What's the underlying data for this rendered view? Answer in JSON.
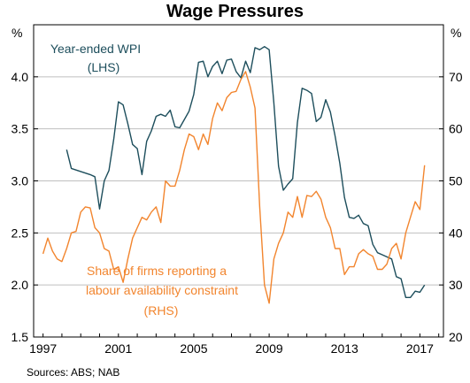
{
  "chart_data": {
    "type": "line",
    "title": "Wage Pressures",
    "source": "Sources:   ABS; NAB",
    "left_unit": "%",
    "right_unit": "%",
    "left_axis": {
      "ylim": [
        1.5,
        4.5
      ],
      "ticks": [
        1.5,
        2.0,
        2.5,
        3.0,
        3.5,
        4.0
      ],
      "tick_labels": [
        "1.5",
        "2.0",
        "2.5",
        "3.0",
        "3.5",
        "4.0"
      ]
    },
    "right_axis": {
      "ylim": [
        20,
        80
      ],
      "ticks": [
        20,
        30,
        40,
        50,
        60,
        70
      ],
      "tick_labels": [
        "20",
        "30",
        "40",
        "50",
        "60",
        "70"
      ]
    },
    "x_axis": {
      "xlim": [
        1996.5,
        2018.25
      ],
      "tick_labels": [
        "1997",
        "2001",
        "2005",
        "2009",
        "2013",
        "2017"
      ],
      "tick_years": [
        1997,
        2001,
        2005,
        2009,
        2013,
        2017
      ]
    },
    "grid": true,
    "series": [
      {
        "name": "Year-ended WPI",
        "axis_label": "(LHS)",
        "axis": "left",
        "color": "#1d4e5c",
        "x": [
          1998.25,
          1998.5,
          1999.0,
          1999.5,
          1999.75,
          2000.0,
          2000.25,
          2000.5,
          2000.75,
          2001.0,
          2001.25,
          2001.5,
          2001.75,
          2002.0,
          2002.25,
          2002.5,
          2002.75,
          2003.0,
          2003.25,
          2003.5,
          2003.75,
          2004.0,
          2004.25,
          2004.5,
          2004.75,
          2005.0,
          2005.25,
          2005.5,
          2005.75,
          2006.0,
          2006.25,
          2006.5,
          2006.75,
          2007.0,
          2007.25,
          2007.5,
          2007.75,
          2008.0,
          2008.25,
          2008.5,
          2008.75,
          2009.0,
          2009.25,
          2009.5,
          2009.75,
          2010.0,
          2010.25,
          2010.5,
          2010.75,
          2011.0,
          2011.25,
          2011.5,
          2011.75,
          2012.0,
          2012.25,
          2012.5,
          2012.75,
          2013.0,
          2013.25,
          2013.5,
          2013.75,
          2014.0,
          2014.25,
          2014.5,
          2014.75,
          2015.0,
          2015.25,
          2015.5,
          2015.75,
          2016.0,
          2016.25,
          2016.5,
          2016.75,
          2017.0,
          2017.25
        ],
        "y": [
          3.3,
          3.12,
          3.09,
          3.06,
          3.04,
          2.73,
          3.0,
          3.1,
          3.4,
          3.76,
          3.73,
          3.55,
          3.35,
          3.31,
          3.06,
          3.38,
          3.48,
          3.62,
          3.64,
          3.62,
          3.68,
          3.52,
          3.51,
          3.59,
          3.67,
          3.83,
          4.14,
          4.15,
          4.0,
          4.1,
          4.15,
          4.03,
          4.16,
          4.17,
          4.05,
          3.99,
          4.15,
          4.04,
          4.28,
          4.26,
          4.29,
          4.26,
          3.75,
          3.14,
          2.91,
          2.97,
          3.02,
          3.56,
          3.89,
          3.87,
          3.84,
          3.57,
          3.61,
          3.78,
          3.66,
          3.43,
          3.17,
          2.84,
          2.65,
          2.64,
          2.67,
          2.59,
          2.57,
          2.39,
          2.31,
          2.29,
          2.27,
          2.25,
          2.08,
          2.06,
          1.88,
          1.88,
          1.94,
          1.93,
          2.0
        ]
      },
      {
        "name": "Share of firms reporting a labour availability constraint",
        "label_lines": [
          "Share of firms reporting a",
          "labour availability constraint"
        ],
        "axis_label": "(RHS)",
        "axis": "right",
        "color": "#f2852e",
        "x": [
          1997.0,
          1997.25,
          1997.5,
          1997.75,
          1998.0,
          1998.25,
          1998.5,
          1998.75,
          1999.0,
          1999.25,
          1999.5,
          1999.75,
          2000.0,
          2000.25,
          2000.5,
          2000.75,
          2001.0,
          2001.25,
          2001.5,
          2001.75,
          2002.0,
          2002.25,
          2002.5,
          2002.75,
          2003.0,
          2003.25,
          2003.5,
          2003.75,
          2004.0,
          2004.25,
          2004.5,
          2004.75,
          2005.0,
          2005.25,
          2005.5,
          2005.75,
          2006.0,
          2006.25,
          2006.5,
          2006.75,
          2007.0,
          2007.25,
          2007.5,
          2007.75,
          2008.0,
          2008.25,
          2008.5,
          2008.75,
          2009.0,
          2009.25,
          2009.5,
          2009.75,
          2010.0,
          2010.25,
          2010.5,
          2010.75,
          2011.0,
          2011.25,
          2011.5,
          2011.75,
          2012.0,
          2012.25,
          2012.5,
          2012.75,
          2013.0,
          2013.25,
          2013.5,
          2013.75,
          2014.0,
          2014.25,
          2014.5,
          2014.75,
          2015.0,
          2015.25,
          2015.5,
          2015.75,
          2016.0,
          2016.25,
          2016.5,
          2016.75,
          2017.0,
          2017.25
        ],
        "y": [
          36,
          39,
          36.5,
          35,
          34.5,
          37,
          40,
          40.3,
          44,
          45,
          44.8,
          41,
          40,
          37,
          36.5,
          33,
          33.5,
          30.5,
          35,
          39,
          41,
          43,
          42.5,
          44,
          45,
          42,
          50,
          49,
          49,
          52,
          56,
          59,
          58.5,
          56,
          59,
          57,
          62,
          65,
          63.5,
          66,
          67,
          67.2,
          69.5,
          71,
          68,
          64,
          45,
          30,
          26.5,
          35,
          38,
          40,
          44,
          43,
          47,
          43,
          47.2,
          47,
          48,
          46.5,
          43,
          41,
          37,
          37,
          32,
          33.5,
          33.5,
          36,
          36.8,
          36,
          35.5,
          33,
          33,
          34,
          37,
          38,
          35,
          40,
          43,
          46,
          44.5,
          53
        ]
      }
    ]
  }
}
